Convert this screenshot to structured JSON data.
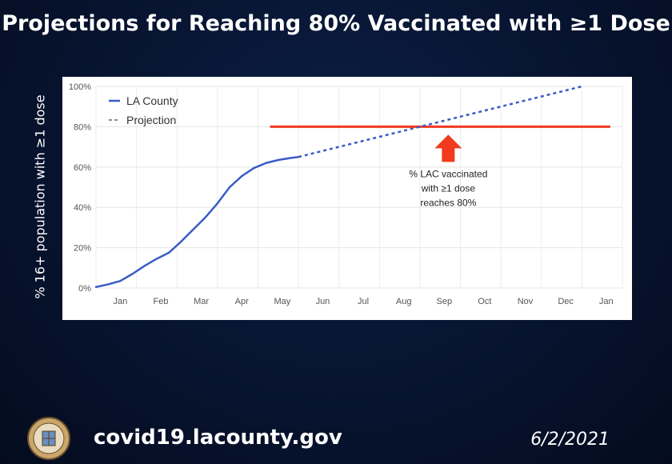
{
  "header": {
    "title": "Projections for Reaching 80% Vaccinated with ≥1 Dose"
  },
  "footer": {
    "url": "covid19.lacounty.gov",
    "date": "6/2/2021"
  },
  "chart_data": {
    "type": "line",
    "title": "Projections for Reaching 80% Vaccinated with ≥1 Dose",
    "xlabel": "",
    "ylabel": "% 16+ population with ≥1 dose",
    "ylim": [
      0,
      100
    ],
    "xlim": [
      0,
      13
    ],
    "y_ticks": [
      "0%",
      "20%",
      "40%",
      "60%",
      "80%",
      "100%"
    ],
    "y_tick_values": [
      0,
      20,
      40,
      60,
      80,
      100
    ],
    "x_ticks": [
      "Jan",
      "Feb",
      "Mar",
      "Apr",
      "May",
      "Jun",
      "Jul",
      "Aug",
      "Sep",
      "Oct",
      "Nov",
      "Dec",
      "Jan"
    ],
    "grid": true,
    "legend_position": "top-left",
    "series": [
      {
        "name": "LA County",
        "style": "solid",
        "color": "#3a5cc7",
        "x": [
          0,
          0.3,
          0.6,
          0.9,
          1.2,
          1.5,
          1.8,
          2.1,
          2.4,
          2.7,
          3.0,
          3.3,
          3.6,
          3.9,
          4.2,
          4.5,
          4.8,
          5.0
        ],
        "y": [
          0.5,
          1.8,
          3.5,
          7,
          11,
          14.5,
          17.5,
          23,
          29,
          35,
          42,
          50,
          55.5,
          59.5,
          62,
          63.5,
          64.5,
          65
        ]
      },
      {
        "name": "Projection",
        "style": "dashed",
        "color": "#3a5cc7",
        "x": [
          5.0,
          6.0,
          7.0,
          8.0,
          9.0,
          10.0,
          11.0,
          12.0
        ],
        "y": [
          65,
          70,
          75,
          80,
          85,
          90,
          95,
          100
        ]
      }
    ],
    "reference_line": {
      "y": 80,
      "x_start": 4.3,
      "x_end": 12.7,
      "color": "#f23a1e"
    },
    "annotation": {
      "lines": [
        "% LAC vaccinated",
        "with ≥1 dose",
        "reaches 80%"
      ],
      "x": 8.7,
      "color": "#f23a1e"
    }
  }
}
